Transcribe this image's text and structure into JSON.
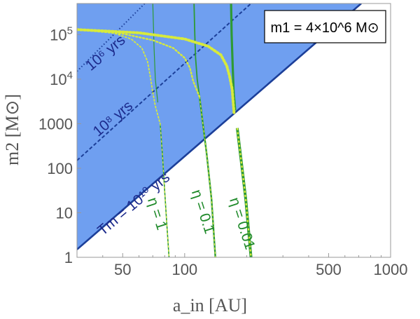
{
  "chart_data": {
    "type": "line",
    "xscale": "log",
    "yscale": "log",
    "xlim": [
      30,
      1000
    ],
    "ylim": [
      1,
      500000
    ],
    "xlabel": "a_in [AU]",
    "ylabel": "m2 [M⊙]",
    "xticks": [
      {
        "value": 50,
        "label": "50"
      },
      {
        "value": 100,
        "label": "100"
      },
      {
        "value": 500,
        "label": "500"
      },
      {
        "value": 1000,
        "label": "1000"
      }
    ],
    "yticks": [
      {
        "value": 1,
        "label": "1"
      },
      {
        "value": 10,
        "label": "10"
      },
      {
        "value": 100,
        "label": "100"
      },
      {
        "value": 1000,
        "label": "1000"
      },
      {
        "value": 10000,
        "label": "10^4"
      },
      {
        "value": 100000,
        "label": "10^5"
      }
    ],
    "legend": {
      "text": "m1 = 4×10^6 M⊙",
      "placement": "top-right"
    },
    "shaded_region": {
      "below": "Tm = 10^10 yrs",
      "color": "#6f9ff0"
    },
    "merger_time_lines": [
      {
        "label": "Tm = 10^10 yrs",
        "style": "solid",
        "color": "#1c3f99",
        "points": [
          [
            30,
            1.5
          ],
          [
            720,
            500000
          ]
        ]
      },
      {
        "label": "10^8 yrs",
        "style": "dashed",
        "color": "#1c3f99",
        "points": [
          [
            30,
            150
          ],
          [
            210,
            500000
          ]
        ]
      },
      {
        "label": "10^6 yrs",
        "style": "dotted",
        "color": "#1c3f99",
        "points": [
          [
            30,
            15000
          ],
          [
            64,
            500000
          ]
        ]
      }
    ],
    "eta_curves": [
      {
        "label": "η = 1",
        "eta": 1,
        "color": "#2e9a35",
        "upper_width": 1.2,
        "lower_width": 1.6,
        "a_asym": 70,
        "a_low": 84,
        "m_cross": 1300,
        "points": [
          [
            70,
            500000
          ],
          [
            71,
            50000
          ],
          [
            72,
            10000
          ],
          [
            74,
            3000
          ],
          [
            76,
            1000
          ],
          [
            78,
            200
          ],
          [
            80,
            30
          ],
          [
            82,
            5
          ],
          [
            84,
            1
          ]
        ]
      },
      {
        "label": "η = 0.1",
        "eta": 0.1,
        "color": "#2e9a35",
        "upper_width": 1.8,
        "lower_width": 2.4,
        "a_asym": 111,
        "a_low": 141,
        "m_cross": 4000,
        "points": [
          [
            111,
            500000
          ],
          [
            112,
            100000
          ],
          [
            113,
            30000
          ],
          [
            115,
            10000
          ],
          [
            118,
            4000
          ],
          [
            122,
            1200
          ],
          [
            128,
            200
          ],
          [
            135,
            20
          ],
          [
            141,
            1
          ]
        ]
      },
      {
        "label": "η = 0.01",
        "eta": 0.01,
        "color": "#2e9a35",
        "upper_width": 3.2,
        "lower_width": 4.0,
        "a_asym": 168,
        "a_low": 210,
        "m_cross": 1600,
        "points": [
          [
            168,
            500000
          ],
          [
            169,
            100000
          ],
          [
            171,
            20000
          ],
          [
            173,
            5000
          ],
          [
            176,
            2000
          ],
          [
            180,
            800
          ],
          [
            188,
            150
          ],
          [
            198,
            20
          ],
          [
            210,
            1
          ]
        ]
      }
    ],
    "boundary_curves": [
      {
        "name": "η=1",
        "color": "#d7ea3c",
        "width": 1.8,
        "points": [
          [
            30,
            130000
          ],
          [
            45,
            110000
          ],
          [
            55,
            80000
          ],
          [
            62,
            50000
          ],
          [
            66,
            25000
          ],
          [
            68,
            12000
          ],
          [
            70,
            5000
          ],
          [
            72,
            2500
          ],
          [
            76,
            1000
          ]
        ]
      },
      {
        "name": "η=0.1",
        "color": "#d7ea3c",
        "width": 2.4,
        "points": [
          [
            30,
            130000
          ],
          [
            50,
            105000
          ],
          [
            70,
            75000
          ],
          [
            88,
            50000
          ],
          [
            100,
            30000
          ],
          [
            106,
            18000
          ],
          [
            110,
            9000
          ],
          [
            114,
            6000
          ],
          [
            118,
            4000
          ]
        ]
      },
      {
        "name": "η=0.01",
        "color": "#d7ea3c",
        "width": 4.0,
        "points": [
          [
            30,
            130000
          ],
          [
            60,
            110000
          ],
          [
            100,
            80000
          ],
          [
            130,
            55000
          ],
          [
            150,
            35000
          ],
          [
            160,
            20000
          ],
          [
            165,
            12000
          ],
          [
            170,
            6000
          ],
          [
            172,
            3000
          ],
          [
            174,
            1600
          ]
        ]
      }
    ],
    "annotations": [
      {
        "text": "10⁶ yrs",
        "value_x": 35,
        "value_y": 15000,
        "angle": -40,
        "class": "ann-dark"
      },
      {
        "text": "10⁸ yrs",
        "value_x": 38,
        "value_y": 500,
        "angle": -40,
        "class": "ann-dark"
      },
      {
        "text": "Tm = 10¹⁰ yrs",
        "value_x": 40,
        "value_y": 3,
        "angle": -40,
        "class": "ann-dark"
      },
      {
        "text": "η = 1",
        "value_x": 66,
        "value_y": 20,
        "angle": 72,
        "class": "ann-green"
      },
      {
        "text": "η = 0.1",
        "value_x": 108,
        "value_y": 30,
        "angle": 72,
        "class": "ann-green"
      },
      {
        "text": "η = 0.01",
        "value_x": 165,
        "value_y": 20,
        "angle": 72,
        "class": "ann-green"
      }
    ]
  }
}
